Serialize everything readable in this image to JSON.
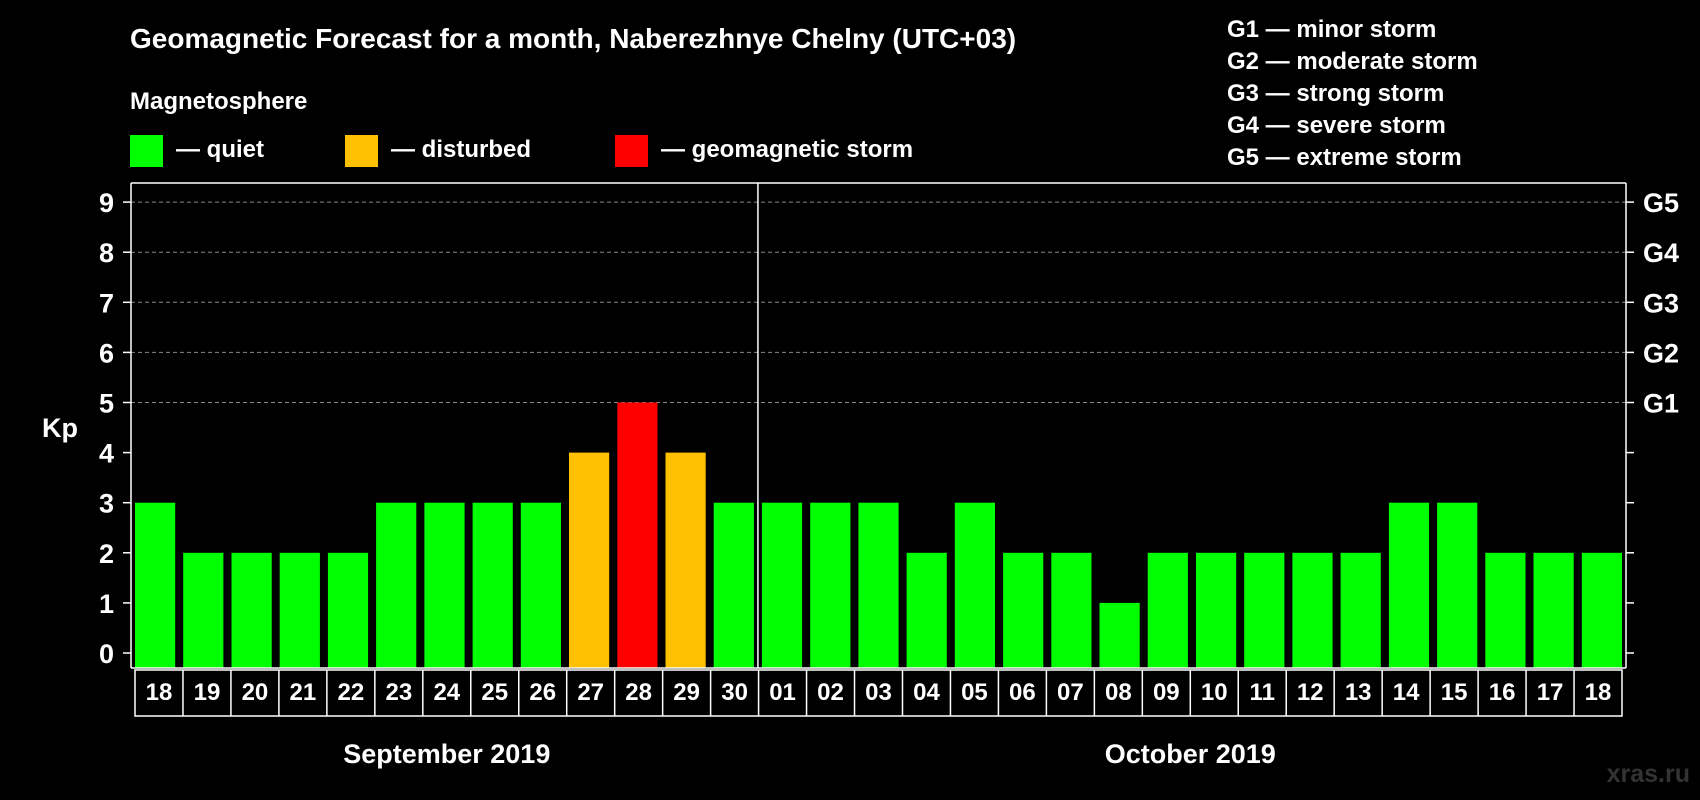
{
  "chart_data": {
    "type": "bar",
    "title": "Geomagnetic Forecast for a month, Naberezhnye Chelny (UTC+03)",
    "ylabel": "Kp",
    "xlabel": "",
    "ylim": [
      0,
      9
    ],
    "yticks": [
      "0",
      "1",
      "2",
      "3",
      "4",
      "5",
      "6",
      "7",
      "8",
      "9"
    ],
    "right_ticks": [
      {
        "kp": 5,
        "label": "G1"
      },
      {
        "kp": 6,
        "label": "G2"
      },
      {
        "kp": 7,
        "label": "G3"
      },
      {
        "kp": 8,
        "label": "G4"
      },
      {
        "kp": 9,
        "label": "G5"
      }
    ],
    "categories": [
      "18",
      "19",
      "20",
      "21",
      "22",
      "23",
      "24",
      "25",
      "26",
      "27",
      "28",
      "29",
      "30",
      "01",
      "02",
      "03",
      "04",
      "05",
      "06",
      "07",
      "08",
      "09",
      "10",
      "11",
      "12",
      "13",
      "14",
      "15",
      "16",
      "17",
      "18"
    ],
    "values": [
      3,
      2,
      2,
      2,
      2,
      3,
      3,
      3,
      3,
      4,
      5,
      4,
      3,
      3,
      3,
      3,
      2,
      3,
      2,
      2,
      1,
      2,
      2,
      2,
      2,
      2,
      3,
      3,
      2,
      2,
      2
    ],
    "months": [
      {
        "label": "September 2019",
        "start": 0,
        "end": 12
      },
      {
        "label": "October 2019",
        "start": 13,
        "end": 30
      }
    ],
    "legend_heading": "Magnetosphere",
    "legend": [
      {
        "label": "— quiet",
        "color": "#00ff00",
        "min_kp": 0
      },
      {
        "label": "— disturbed",
        "color": "#ffc000",
        "min_kp": 4
      },
      {
        "label": "— geomagnetic storm",
        "color": "#ff0000",
        "min_kp": 5
      }
    ],
    "storm_scale": [
      "G1 — minor storm",
      "G2 — moderate storm",
      "G3 — strong storm",
      "G4 — severe storm",
      "G5 — extreme storm"
    ]
  },
  "watermark": "xras.ru",
  "colors": {
    "background": "#000000",
    "grid": "#888888",
    "axis": "#ffffff"
  }
}
